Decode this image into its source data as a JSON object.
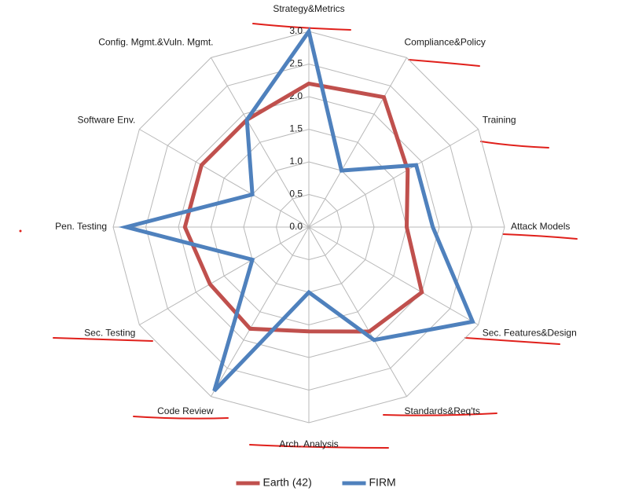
{
  "chart_data": {
    "type": "radar",
    "categories": [
      "Strategy&Metrics",
      "Compliance&Policy",
      "Training",
      "Attack Models",
      "Sec. Features&Design",
      "Standards&Req'ts",
      "Arch. Analysis",
      "Code Review",
      "Sec. Testing",
      "Pen. Testing",
      "Software Env.",
      "Config. Mgmt.&Vuln. Mgmt."
    ],
    "series": [
      {
        "name": "Earth (42)",
        "color": "#c0504d",
        "values": [
          2.2,
          2.3,
          1.75,
          1.5,
          2.0,
          1.85,
          1.6,
          1.8,
          1.75,
          1.9,
          1.9,
          1.9
        ]
      },
      {
        "name": "FIRM",
        "color": "#4f81bd",
        "values": [
          3.0,
          1.0,
          1.9,
          1.9,
          2.9,
          2.0,
          1.0,
          2.9,
          1.0,
          2.8,
          1.0,
          1.9
        ]
      }
    ],
    "ylim": [
      0,
      3
    ],
    "yticks": [
      {
        "value": 0,
        "label": "0.0"
      },
      {
        "value": 0.5,
        "label": "0.5"
      },
      {
        "value": 1,
        "label": "1.0"
      },
      {
        "value": 1.5,
        "label": "1.5"
      },
      {
        "value": 2,
        "label": "2.0"
      },
      {
        "value": 2.5,
        "label": "2.5"
      },
      {
        "value": 3,
        "label": "3.0"
      }
    ],
    "grid": true,
    "legend": "bottom"
  }
}
